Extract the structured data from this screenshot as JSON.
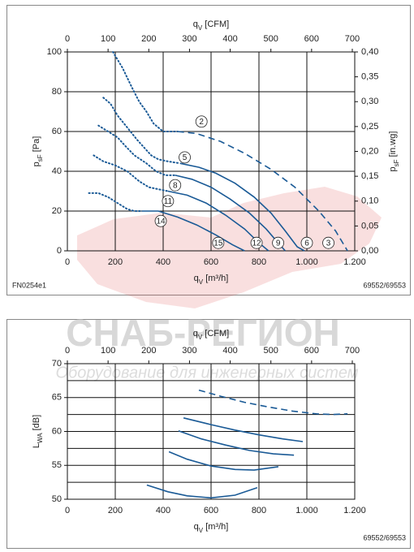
{
  "watermark": {
    "title": "СНАБ-РЕГИОН",
    "subtitle": "Оборудование для инженерных систем"
  },
  "chart_data": [
    {
      "type": "line",
      "x_label": [
        "q",
        "V",
        " [m³/h]"
      ],
      "x2_label": [
        "q",
        "V",
        " [CFM]"
      ],
      "y_label": [
        "p",
        "sF",
        " [Pa]"
      ],
      "y2_label": [
        "p",
        "sF",
        " [in.wg]"
      ],
      "code": "FN0254e1",
      "model": "69552/69553",
      "xlim": [
        0,
        1200
      ],
      "xticks": [
        0,
        200,
        400,
        600,
        800,
        {
          "value": 1000,
          "label": "1.000"
        },
        {
          "value": 1200,
          "label": "1.200"
        }
      ],
      "x2lim": [
        0,
        706
      ],
      "x2ticks": [
        0,
        100,
        200,
        300,
        400,
        500,
        600,
        700
      ],
      "ylim": [
        0,
        100
      ],
      "yticks": [
        0,
        20,
        40,
        60,
        80,
        100
      ],
      "y2lim": [
        0,
        0.4
      ],
      "y2ticks": [
        {
          "value": 0,
          "label": "0,00"
        },
        {
          "value": 0.05,
          "label": "0,05"
        },
        {
          "value": 0.1,
          "label": "0,10"
        },
        {
          "value": 0.15,
          "label": "0,15"
        },
        {
          "value": 0.2,
          "label": "0,20"
        },
        {
          "value": 0.25,
          "label": "0,25"
        },
        {
          "value": 0.3,
          "label": "0,30"
        },
        {
          "value": 0.35,
          "label": "0,35"
        },
        {
          "value": 0.4,
          "label": "0,40"
        }
      ],
      "grid": true,
      "color": "#1a5a96",
      "series": [
        {
          "style": "dotted",
          "x": [
            190,
            230,
            270,
            300,
            330,
            360,
            400,
            460
          ],
          "values": [
            100,
            92,
            82,
            75,
            70,
            64,
            60,
            60
          ]
        },
        {
          "style": "dashed",
          "x": [
            460,
            540,
            640,
            740,
            850,
            950,
            1050,
            1120,
            1170
          ],
          "values": [
            60,
            59,
            55,
            49,
            41,
            32,
            20,
            10,
            0
          ]
        },
        {
          "style": "dotted",
          "x": [
            150,
            180,
            210,
            250,
            290,
            320,
            350,
            380,
            420,
            470
          ],
          "values": [
            77,
            74,
            68,
            62,
            56,
            52,
            48,
            46,
            45,
            44
          ]
        },
        {
          "style": "solid",
          "x": [
            470,
            550,
            620,
            700,
            780,
            850,
            910,
            960,
            990
          ],
          "values": [
            44,
            42,
            39,
            34,
            27,
            19,
            10,
            2,
            0
          ]
        },
        {
          "style": "dotted",
          "x": [
            130,
            170,
            210,
            240,
            280,
            330,
            370,
            410,
            450
          ],
          "values": [
            63,
            60,
            57,
            53,
            48,
            44,
            40,
            38,
            38
          ]
        },
        {
          "style": "solid",
          "x": [
            450,
            520,
            600,
            680,
            760,
            830,
            880,
            910
          ],
          "values": [
            38,
            36,
            32,
            26,
            19,
            11,
            4,
            0
          ]
        },
        {
          "style": "dotted",
          "x": [
            110,
            150,
            200,
            250,
            300,
            340,
            380,
            420
          ],
          "values": [
            48,
            45,
            43,
            40,
            35,
            32,
            31,
            30
          ]
        },
        {
          "style": "solid",
          "x": [
            420,
            500,
            580,
            660,
            740,
            800,
            840
          ],
          "values": [
            30,
            28,
            24,
            18,
            11,
            4,
            0
          ]
        },
        {
          "style": "dotted",
          "x": [
            90,
            130,
            170,
            210,
            250,
            280,
            310
          ],
          "values": [
            29,
            29,
            27,
            24,
            21,
            20,
            20
          ]
        },
        {
          "style": "solid",
          "x": [
            310,
            380,
            460,
            540,
            620,
            690,
            740
          ],
          "values": [
            20,
            20,
            17,
            13,
            8,
            3,
            0
          ]
        }
      ],
      "annotations": [
        {
          "text": "2",
          "x": 560,
          "y": 65
        },
        {
          "text": "5",
          "x": 490,
          "y": 47
        },
        {
          "text": "8",
          "x": 450,
          "y": 33
        },
        {
          "text": "11",
          "x": 420,
          "y": 25
        },
        {
          "text": "14",
          "x": 390,
          "y": 15
        },
        {
          "text": "15",
          "x": 630,
          "y": 4
        },
        {
          "text": "12",
          "x": 790,
          "y": 4
        },
        {
          "text": "9",
          "x": 880,
          "y": 4
        },
        {
          "text": "6",
          "x": 1000,
          "y": 4
        },
        {
          "text": "3",
          "x": 1090,
          "y": 4
        }
      ]
    },
    {
      "type": "line",
      "x_label": [
        "q",
        "V",
        " [m³/h]"
      ],
      "x2_label": [
        "q",
        "V",
        " [CFM]"
      ],
      "y_label": [
        "L",
        "WA",
        " [dB]"
      ],
      "model": "69552/69553",
      "xlim": [
        0,
        1200
      ],
      "xticks": [
        0,
        200,
        400,
        600,
        800,
        {
          "value": 1000,
          "label": "1.000"
        },
        {
          "value": 1200,
          "label": "1.200"
        }
      ],
      "x2lim": [
        0,
        706
      ],
      "x2ticks": [
        0,
        100,
        200,
        300,
        400,
        500,
        600,
        700
      ],
      "ylim": [
        50,
        70
      ],
      "yticks": [
        50,
        55,
        60,
        65,
        70
      ],
      "minor_yticks": [
        52.5,
        57.5,
        62.5,
        67.5
      ],
      "grid": true,
      "color": "#1a5a96",
      "series": [
        {
          "style": "dashed",
          "x": [
            549,
            640,
            740,
            840,
            940,
            1040,
            1110,
            1170
          ],
          "values": [
            66.1,
            65.2,
            64.3,
            63.6,
            63.0,
            62.6,
            62.5,
            62.6
          ]
        },
        {
          "style": "solid",
          "x": [
            485,
            600,
            700,
            800,
            900,
            983
          ],
          "values": [
            62.0,
            61.0,
            60.2,
            59.5,
            58.9,
            58.5
          ]
        },
        {
          "style": "solid",
          "x": [
            464,
            560,
            660,
            760,
            860,
            946
          ],
          "values": [
            60.1,
            58.9,
            58.0,
            57.2,
            56.7,
            56.5
          ]
        },
        {
          "style": "solid",
          "x": [
            424,
            500,
            600,
            700,
            780,
            881
          ],
          "values": [
            57.0,
            55.9,
            54.9,
            54.4,
            54.3,
            54.8
          ]
        },
        {
          "style": "solid",
          "x": [
            332,
            420,
            500,
            600,
            700,
            793
          ],
          "values": [
            52.1,
            51.1,
            50.5,
            50.2,
            50.6,
            51.7
          ]
        }
      ]
    }
  ]
}
